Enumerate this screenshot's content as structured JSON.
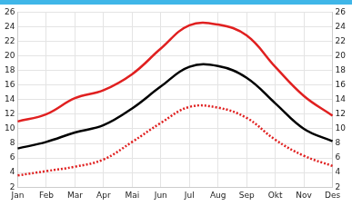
{
  "chart_data": {
    "type": "line",
    "categories": [
      "Jan",
      "Feb",
      "Mar",
      "Apr",
      "Mai",
      "Jun",
      "Jul",
      "Aug",
      "Sep",
      "Okt",
      "Nov",
      "Des"
    ],
    "series": [
      {
        "color": "#e02020",
        "line_style": "solid",
        "values": [
          11.0,
          12.0,
          14.2,
          15.3,
          17.5,
          21.0,
          24.2,
          24.3,
          22.8,
          18.5,
          14.5,
          11.8
        ]
      },
      {
        "color": "#000000",
        "line_style": "solid",
        "values": [
          7.3,
          8.2,
          9.5,
          10.5,
          12.8,
          15.8,
          18.5,
          18.6,
          17.0,
          13.5,
          10.0,
          8.3
        ]
      },
      {
        "color": "#e02020",
        "line_style": "dotted",
        "values": [
          3.6,
          4.2,
          4.8,
          5.8,
          8.2,
          10.8,
          13.0,
          12.9,
          11.5,
          8.5,
          6.3,
          4.9
        ]
      }
    ],
    "ylim": [
      2,
      26
    ],
    "yticks": [
      2,
      4,
      6,
      8,
      10,
      12,
      14,
      16,
      18,
      20,
      22,
      24,
      26
    ],
    "y2lim": [
      2,
      26
    ],
    "y2ticks": [
      2,
      4,
      6,
      8,
      10,
      12,
      14,
      16,
      18,
      20,
      22,
      24,
      26
    ],
    "grid": true
  }
}
